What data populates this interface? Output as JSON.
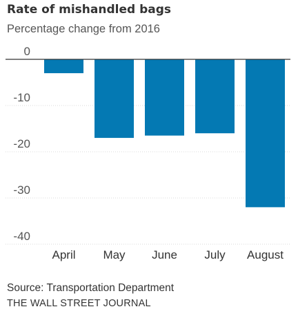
{
  "chart_data": {
    "type": "bar",
    "title": "Rate of mishandled bags",
    "subtitle": "Percentage change from 2016",
    "categories": [
      "April",
      "May",
      "June",
      "July",
      "August"
    ],
    "values": [
      -3,
      -17,
      -16.5,
      -16,
      -32
    ],
    "ylim": [
      -40,
      0
    ],
    "yticks": [
      0,
      -10,
      -20,
      -30,
      -40
    ],
    "ytick_labels": [
      "0",
      "-10",
      "-20",
      "-30",
      "-40"
    ],
    "grid": true,
    "bar_color": "#0479b3",
    "zero_line_color": "#333333",
    "grid_color": "#d9d9d9"
  },
  "footer": {
    "source": "Source: Transportation Department",
    "credit": "THE WALL STREET JOURNAL"
  }
}
